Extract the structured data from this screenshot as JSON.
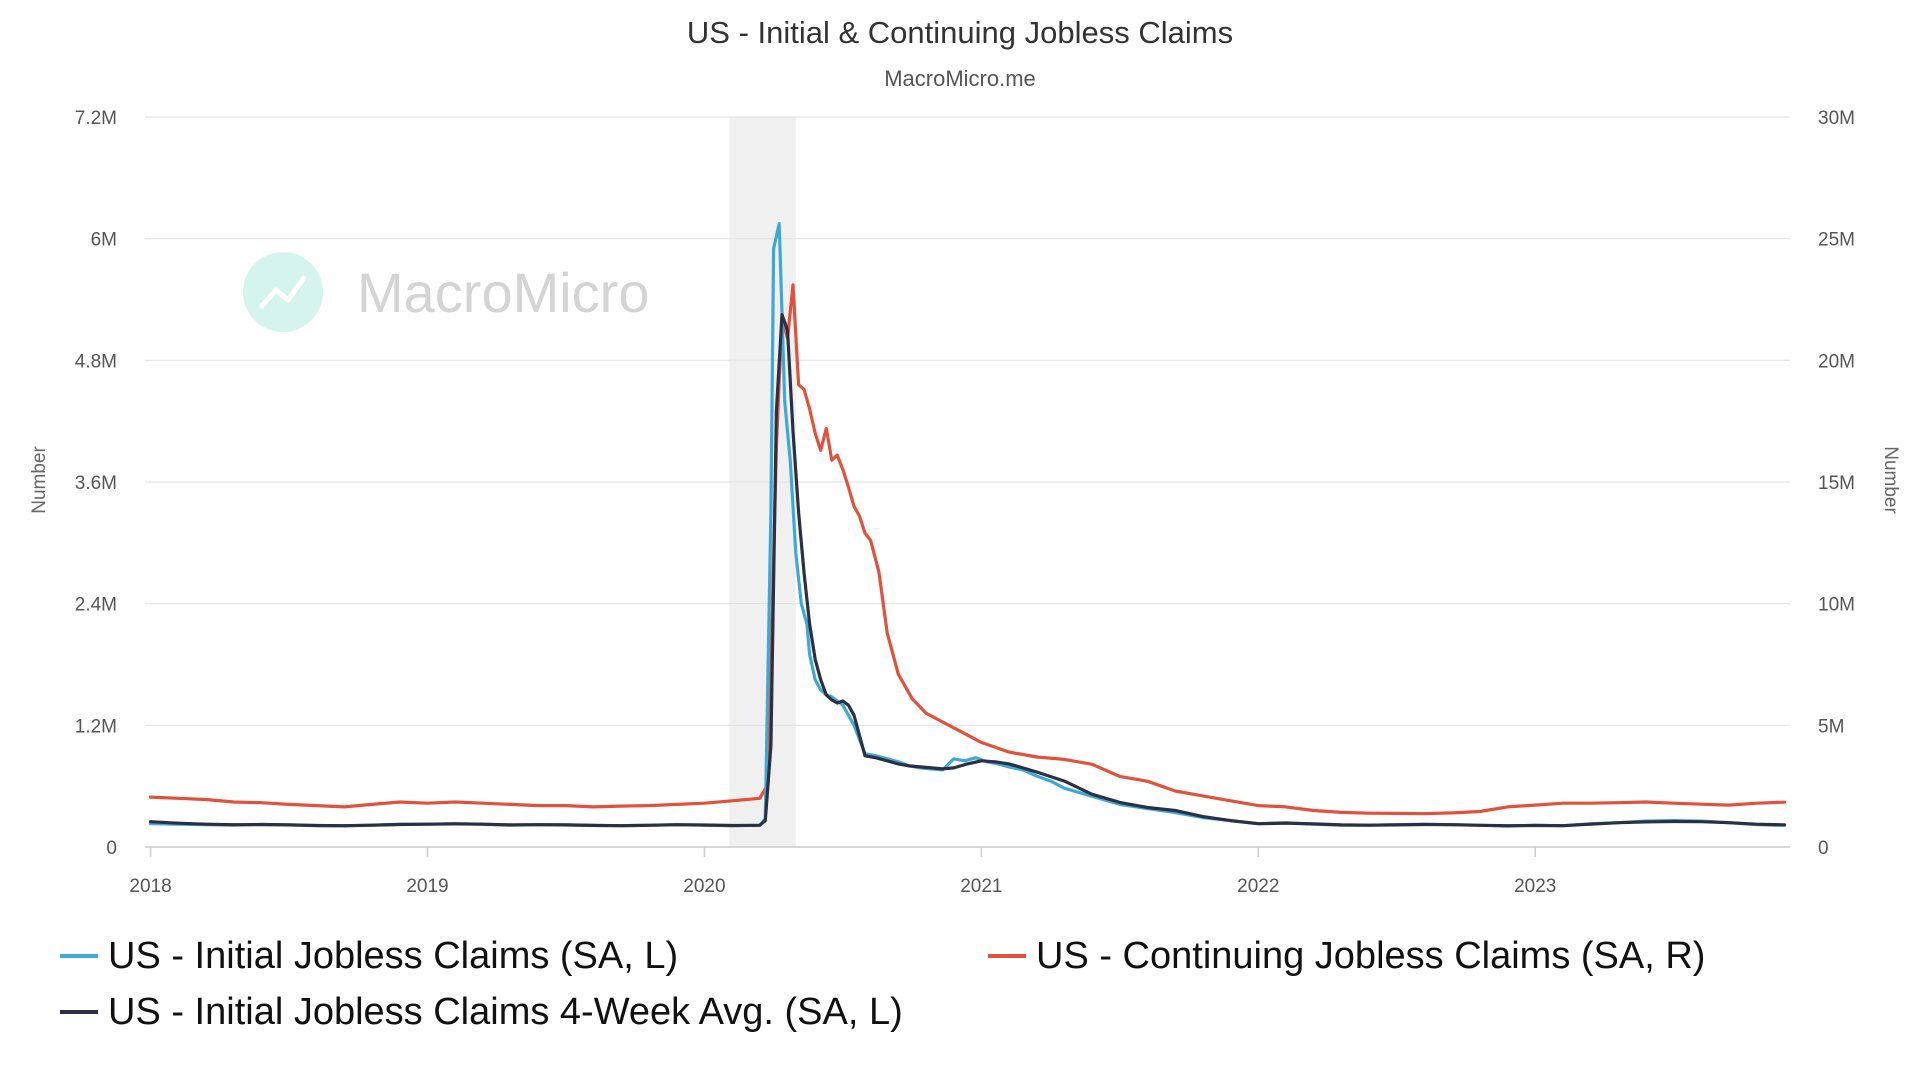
{
  "chart_data": {
    "type": "line",
    "title": "US - Initial & Continuing Jobless Claims",
    "subtitle": "MacroMicro.me",
    "watermark": "MacroMicro",
    "ylabel_left": "Number",
    "ylabel_right": "Number",
    "ylim_left": [
      0,
      7200000
    ],
    "ylim_right": [
      0,
      30000000
    ],
    "yticks_left": [
      "0",
      "1.2M",
      "2.4M",
      "3.6M",
      "4.8M",
      "6M",
      "7.2M"
    ],
    "yticks_right": [
      "0",
      "5M",
      "10M",
      "15M",
      "20M",
      "25M",
      "30M"
    ],
    "xlim": [
      2017.98,
      2023.92
    ],
    "xticks": [
      "2018",
      "2019",
      "2020",
      "2021",
      "2022",
      "2023"
    ],
    "recession_band": {
      "start": 2020.09,
      "end": 2020.33
    },
    "legend_position": "bottom",
    "series": [
      {
        "name": "US - Initial Jobless Claims (SA, L)",
        "axis": "left",
        "color": "#3fa9d6",
        "x": [
          2018.0,
          2018.1,
          2018.2,
          2018.3,
          2018.4,
          2018.5,
          2018.6,
          2018.7,
          2018.8,
          2018.9,
          2019.0,
          2019.1,
          2019.2,
          2019.3,
          2019.4,
          2019.5,
          2019.6,
          2019.7,
          2019.8,
          2019.9,
          2020.0,
          2020.1,
          2020.2,
          2020.22,
          2020.24,
          2020.25,
          2020.27,
          2020.29,
          2020.31,
          2020.33,
          2020.35,
          2020.37,
          2020.38,
          2020.4,
          2020.42,
          2020.44,
          2020.46,
          2020.5,
          2020.54,
          2020.58,
          2020.62,
          2020.66,
          2020.7,
          2020.74,
          2020.78,
          2020.82,
          2020.86,
          2020.9,
          2020.94,
          2020.98,
          2021.02,
          2021.06,
          2021.1,
          2021.15,
          2021.2,
          2021.25,
          2021.3,
          2021.4,
          2021.5,
          2021.6,
          2021.7,
          2021.8,
          2021.9,
          2022.0,
          2022.1,
          2022.2,
          2022.3,
          2022.4,
          2022.5,
          2022.6,
          2022.7,
          2022.8,
          2022.9,
          2023.0,
          2023.1,
          2023.2,
          2023.3,
          2023.4,
          2023.5,
          2023.6,
          2023.7,
          2023.8,
          2023.9
        ],
        "values": [
          230000,
          225000,
          220000,
          215000,
          222000,
          218000,
          210000,
          208000,
          215000,
          225000,
          225000,
          230000,
          225000,
          215000,
          220000,
          218000,
          212000,
          210000,
          215000,
          220000,
          215000,
          210000,
          215000,
          280000,
          3300000,
          5900000,
          6150000,
          4400000,
          3800000,
          2900000,
          2400000,
          2200000,
          1900000,
          1650000,
          1550000,
          1500000,
          1480000,
          1400000,
          1200000,
          920000,
          900000,
          870000,
          840000,
          800000,
          780000,
          770000,
          760000,
          870000,
          850000,
          880000,
          840000,
          820000,
          790000,
          760000,
          700000,
          650000,
          580000,
          500000,
          420000,
          380000,
          340000,
          290000,
          260000,
          230000,
          240000,
          225000,
          215000,
          215000,
          220000,
          225000,
          220000,
          215000,
          205000,
          215000,
          210000,
          230000,
          240000,
          255000,
          260000,
          255000,
          240000,
          220000,
          215000
        ]
      },
      {
        "name": "US - Continuing Jobless Claims (SA, R)",
        "axis": "right",
        "color": "#e2513c",
        "x": [
          2018.0,
          2018.1,
          2018.2,
          2018.3,
          2018.4,
          2018.5,
          2018.6,
          2018.7,
          2018.8,
          2018.9,
          2019.0,
          2019.1,
          2019.2,
          2019.3,
          2019.4,
          2019.5,
          2019.6,
          2019.7,
          2019.8,
          2019.9,
          2020.0,
          2020.1,
          2020.2,
          2020.23,
          2020.26,
          2020.28,
          2020.3,
          2020.32,
          2020.34,
          2020.36,
          2020.38,
          2020.4,
          2020.42,
          2020.44,
          2020.46,
          2020.48,
          2020.5,
          2020.52,
          2020.54,
          2020.56,
          2020.58,
          2020.6,
          2020.63,
          2020.66,
          2020.7,
          2020.75,
          2020.8,
          2020.85,
          2020.9,
          2020.95,
          2021.0,
          2021.05,
          2021.1,
          2021.15,
          2021.2,
          2021.3,
          2021.4,
          2021.5,
          2021.6,
          2021.7,
          2021.8,
          2021.9,
          2022.0,
          2022.1,
          2022.2,
          2022.3,
          2022.4,
          2022.5,
          2022.6,
          2022.7,
          2022.8,
          2022.9,
          2023.0,
          2023.1,
          2023.2,
          2023.3,
          2023.4,
          2023.5,
          2023.6,
          2023.7,
          2023.8,
          2023.9
        ],
        "values": [
          2050000,
          2000000,
          1950000,
          1850000,
          1820000,
          1750000,
          1700000,
          1650000,
          1750000,
          1850000,
          1800000,
          1850000,
          1800000,
          1750000,
          1700000,
          1700000,
          1650000,
          1680000,
          1700000,
          1750000,
          1800000,
          1900000,
          2000000,
          2600000,
          16500000,
          21800000,
          20900000,
          23100000,
          19000000,
          18800000,
          18000000,
          17000000,
          16300000,
          17200000,
          15900000,
          16100000,
          15500000,
          14800000,
          14000000,
          13600000,
          12900000,
          12600000,
          11300000,
          8800000,
          7100000,
          6100000,
          5500000,
          5200000,
          4900000,
          4600000,
          4300000,
          4100000,
          3900000,
          3800000,
          3700000,
          3600000,
          3400000,
          2900000,
          2700000,
          2300000,
          2100000,
          1900000,
          1700000,
          1650000,
          1500000,
          1420000,
          1390000,
          1380000,
          1370000,
          1400000,
          1460000,
          1650000,
          1720000,
          1800000,
          1800000,
          1820000,
          1850000,
          1800000,
          1760000,
          1720000,
          1800000,
          1840000
        ]
      },
      {
        "name": "US - Initial Jobless Claims 4-Week Avg. (SA, L)",
        "axis": "left",
        "color": "#2b3044",
        "x": [
          2018.0,
          2018.1,
          2018.2,
          2018.3,
          2018.4,
          2018.5,
          2018.6,
          2018.7,
          2018.8,
          2018.9,
          2019.0,
          2019.1,
          2019.2,
          2019.3,
          2019.4,
          2019.5,
          2019.6,
          2019.7,
          2019.8,
          2019.9,
          2020.0,
          2020.1,
          2020.2,
          2020.22,
          2020.24,
          2020.26,
          2020.28,
          2020.3,
          2020.32,
          2020.34,
          2020.36,
          2020.38,
          2020.4,
          2020.42,
          2020.44,
          2020.46,
          2020.48,
          2020.5,
          2020.52,
          2020.54,
          2020.56,
          2020.58,
          2020.62,
          2020.66,
          2020.7,
          2020.74,
          2020.78,
          2020.82,
          2020.86,
          2020.9,
          2020.95,
          2021.0,
          2021.05,
          2021.1,
          2021.15,
          2021.2,
          2021.3,
          2021.4,
          2021.5,
          2021.6,
          2021.7,
          2021.8,
          2021.9,
          2022.0,
          2022.1,
          2022.2,
          2022.3,
          2022.4,
          2022.5,
          2022.6,
          2022.7,
          2022.8,
          2022.9,
          2023.0,
          2023.1,
          2023.2,
          2023.3,
          2023.4,
          2023.5,
          2023.6,
          2023.7,
          2023.8,
          2023.9
        ],
        "values": [
          250000,
          235000,
          225000,
          220000,
          222000,
          218000,
          212000,
          210000,
          215000,
          222000,
          225000,
          228000,
          225000,
          218000,
          220000,
          218000,
          213000,
          210000,
          214000,
          220000,
          217000,
          212000,
          214000,
          260000,
          1000000,
          4300000,
          5250000,
          5100000,
          4100000,
          3300000,
          2700000,
          2200000,
          1850000,
          1650000,
          1500000,
          1450000,
          1420000,
          1440000,
          1400000,
          1300000,
          1100000,
          900000,
          880000,
          850000,
          820000,
          800000,
          790000,
          780000,
          770000,
          780000,
          820000,
          850000,
          840000,
          820000,
          780000,
          740000,
          650000,
          520000,
          440000,
          390000,
          360000,
          300000,
          260000,
          230000,
          235000,
          228000,
          218000,
          215000,
          218000,
          222000,
          220000,
          214000,
          210000,
          212000,
          210000,
          225000,
          240000,
          248000,
          252000,
          250000,
          240000,
          225000,
          218000
        ]
      }
    ]
  }
}
